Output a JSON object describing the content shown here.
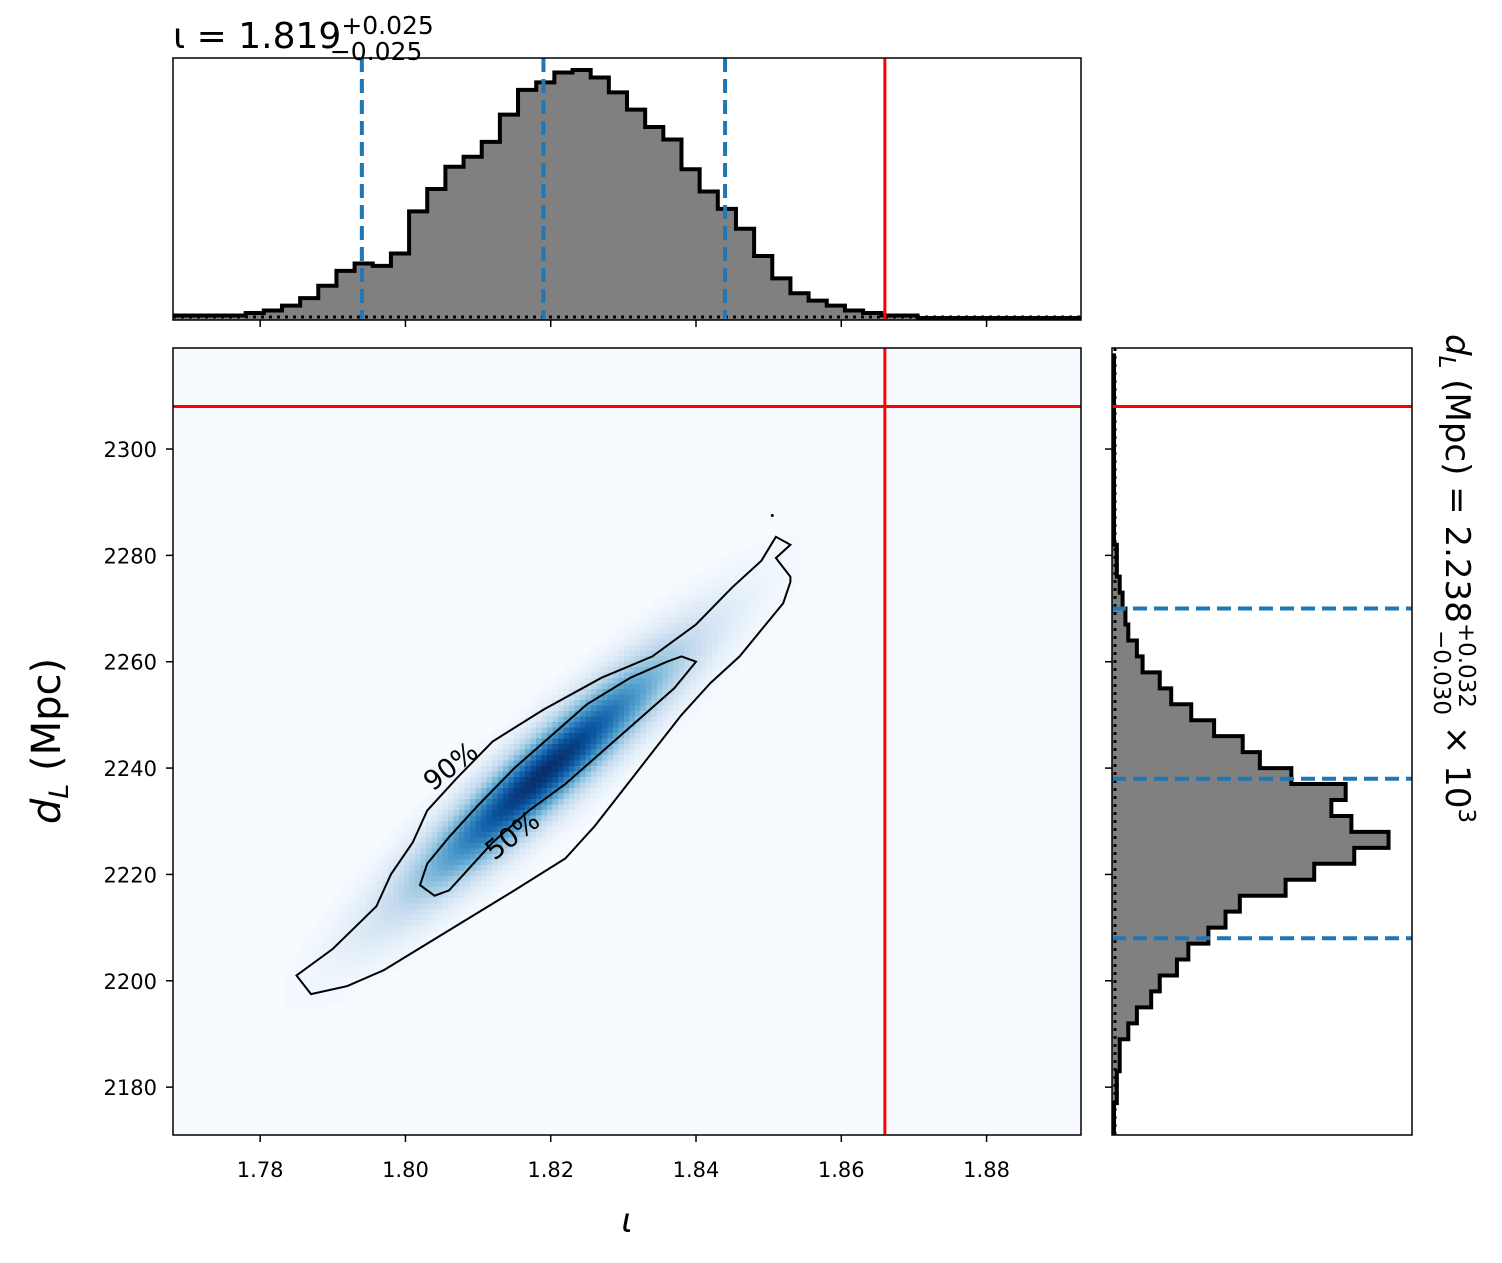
{
  "chart_data": [
    {
      "panel": "top",
      "type": "histogram",
      "title_param": "ι",
      "title_value": "1.819",
      "title_plus": "+0.025",
      "title_minus": "−0.025",
      "x_range": [
        1.768,
        1.893
      ],
      "bins": {
        "start": 1.768,
        "width": 0.0025,
        "counts": [
          0.01,
          0.01,
          0.01,
          0.01,
          0.02,
          0.03,
          0.05,
          0.08,
          0.13,
          0.19,
          0.22,
          0.21,
          0.26,
          0.43,
          0.52,
          0.61,
          0.65,
          0.71,
          0.82,
          0.92,
          0.95,
          0.99,
          1.0,
          0.97,
          0.91,
          0.84,
          0.77,
          0.72,
          0.6,
          0.51,
          0.44,
          0.36,
          0.25,
          0.16,
          0.1,
          0.07,
          0.05,
          0.03,
          0.02,
          0.01,
          0.01,
          0.0,
          0.0,
          0.0,
          0.0,
          0.0,
          0.0,
          0.0,
          0.0,
          0.0
        ]
      },
      "quantiles": [
        1.794,
        1.819,
        1.844
      ],
      "truth": 1.866,
      "colors": {
        "fill": "#808080",
        "edge": "#000000",
        "quantile": "#1f77b4",
        "truth": "#ff0000"
      }
    },
    {
      "panel": "joint",
      "type": "heatmap",
      "xlabel": "ι",
      "ylabel_var": "d",
      "ylabel_sub": "L",
      "ylabel_unit": "(Mpc)",
      "x_range": [
        1.768,
        1.893
      ],
      "y_range": [
        2171,
        2319
      ],
      "x_ticks": [
        "1.78",
        "1.80",
        "1.82",
        "1.84",
        "1.86",
        "1.88"
      ],
      "y_ticks": [
        "2180",
        "2200",
        "2220",
        "2240",
        "2260",
        "2280",
        "2300"
      ],
      "peak": {
        "x": 1.819,
        "y": 2239
      },
      "truth": {
        "x": 1.866,
        "y": 2308
      },
      "contours": [
        {
          "level": "90%",
          "points": [
            [
              1.787,
              2197.5
            ],
            [
              1.785,
              2201
            ],
            [
              1.79,
              2206
            ],
            [
              1.796,
              2214
            ],
            [
              1.798,
              2220
            ],
            [
              1.801,
              2226
            ],
            [
              1.803,
              2232
            ],
            [
              1.807,
              2238
            ],
            [
              1.812,
              2245
            ],
            [
              1.819,
              2251
            ],
            [
              1.827,
              2257
            ],
            [
              1.834,
              2261
            ],
            [
              1.84,
              2267
            ],
            [
              1.845,
              2274
            ],
            [
              1.849,
              2279
            ],
            [
              1.851,
              2283.5
            ],
            [
              1.853,
              2282
            ],
            [
              1.851,
              2279.5
            ],
            [
              1.853,
              2276
            ],
            [
              1.853,
              2275
            ],
            [
              1.852,
              2271
            ],
            [
              1.849,
              2266
            ],
            [
              1.846,
              2261
            ],
            [
              1.842,
              2256
            ],
            [
              1.838,
              2250
            ],
            [
              1.834,
              2243
            ],
            [
              1.83,
              2236
            ],
            [
              1.826,
              2229
            ],
            [
              1.822,
              2223
            ],
            [
              1.815,
              2217
            ],
            [
              1.809,
              2212
            ],
            [
              1.803,
              2207
            ],
            [
              1.797,
              2202
            ],
            [
              1.792,
              2199
            ]
          ]
        },
        {
          "level": "50%",
          "points": [
            [
              1.804,
              2216
            ],
            [
              1.802,
              2218
            ],
            [
              1.803,
              2222
            ],
            [
              1.806,
              2227
            ],
            [
              1.81,
              2233
            ],
            [
              1.815,
              2240
            ],
            [
              1.82,
              2246
            ],
            [
              1.825,
              2252
            ],
            [
              1.831,
              2257
            ],
            [
              1.836,
              2260
            ],
            [
              1.838,
              2261
            ],
            [
              1.84,
              2260
            ],
            [
              1.837,
              2255
            ],
            [
              1.832,
              2249
            ],
            [
              1.827,
              2243
            ],
            [
              1.822,
              2237
            ],
            [
              1.817,
              2232
            ],
            [
              1.812,
              2226
            ],
            [
              1.808,
              2220
            ],
            [
              1.806,
              2217
            ]
          ]
        }
      ],
      "colors": {
        "cmap_low": "#f7fbff",
        "cmap_high": "#08306b",
        "contour": "#000000",
        "truth": "#ff0000"
      }
    },
    {
      "panel": "right",
      "type": "histogram",
      "orientation": "horizontal",
      "title_param": "d",
      "title_sub": "L",
      "title_unit": "(Mpc)",
      "title_value": "2.238",
      "title_plus": "+0.032",
      "title_minus": "−0.030",
      "title_scale": "× 10",
      "title_exp": "3",
      "y_range": [
        2171,
        2319
      ],
      "bins": {
        "start": 2171,
        "width": 3.0,
        "counts": [
          0.0,
          0.0,
          0.01,
          0.01,
          0.02,
          0.02,
          0.05,
          0.08,
          0.13,
          0.16,
          0.22,
          0.26,
          0.33,
          0.39,
          0.44,
          0.6,
          0.7,
          0.84,
          0.96,
          0.83,
          0.76,
          0.81,
          0.62,
          0.51,
          0.45,
          0.35,
          0.27,
          0.2,
          0.16,
          0.1,
          0.08,
          0.05,
          0.04,
          0.03,
          0.02,
          0.01,
          0.01,
          0.0,
          0.0,
          0.0,
          0.0,
          0.0,
          0.0,
          0.0,
          0.0,
          0.0,
          0.0,
          0.0,
          0.0
        ]
      },
      "quantiles": [
        2208,
        2238,
        2270
      ],
      "truth": 2308,
      "colors": {
        "fill": "#808080",
        "edge": "#000000",
        "quantile": "#1f77b4",
        "truth": "#ff0000"
      }
    }
  ]
}
